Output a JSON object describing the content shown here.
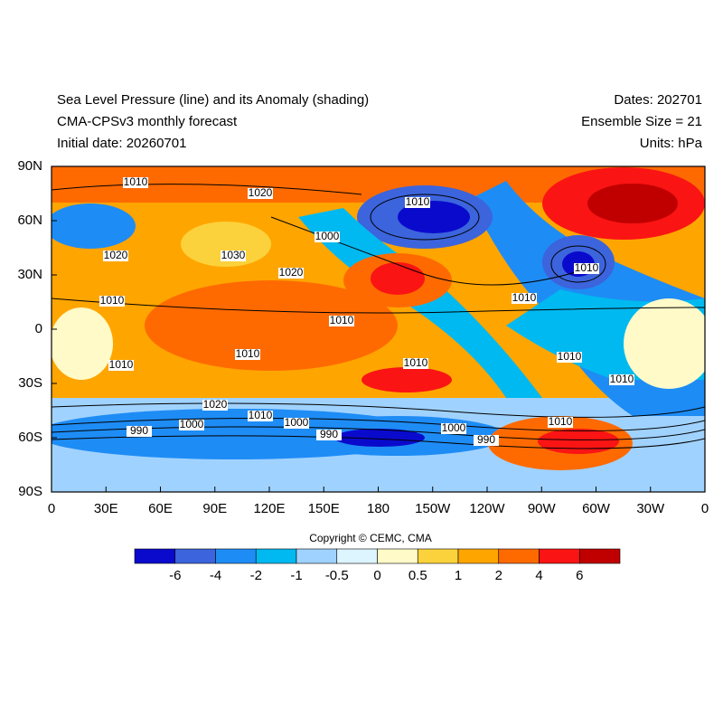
{
  "header": {
    "title": "Sea Level Pressure (line) and its Anomaly (shading)",
    "subtitle": "CMA-CPSv3 monthly forecast",
    "initial_date": "Initial date: 20260701",
    "dates": "Dates: 202701",
    "ensemble": "Ensemble Size = 21",
    "units": "Units: hPa"
  },
  "map": {
    "lat_labels": [
      "90N",
      "60N",
      "30N",
      "0",
      "30S",
      "60S",
      "90S"
    ],
    "lon_labels": [
      "0",
      "30E",
      "60E",
      "90E",
      "120E",
      "150E",
      "180",
      "150W",
      "120W",
      "90W",
      "60W",
      "30W",
      "0"
    ],
    "contour_labels": [
      1010,
      1020,
      1010,
      1000,
      1020,
      1030,
      1020,
      1010,
      1010,
      1010,
      1010,
      1010,
      1010,
      1010,
      1010,
      1010,
      1020,
      1010,
      990,
      1000,
      1000,
      990,
      1000,
      990,
      1010
    ]
  },
  "copyright": "Copyright © CEMC, CMA",
  "colorbar": {
    "levels": [
      -6,
      -4,
      -2,
      -1,
      -0.5,
      0,
      0.5,
      1,
      2,
      4,
      6
    ],
    "colors": [
      "#0a0acd",
      "#3c64dc",
      "#1e8cf5",
      "#00b9f0",
      "#a0d2ff",
      "#dcf5ff",
      "#fffac8",
      "#fcd23c",
      "#ffa500",
      "#ff6a00",
      "#fa1414",
      "#c00000"
    ]
  }
}
